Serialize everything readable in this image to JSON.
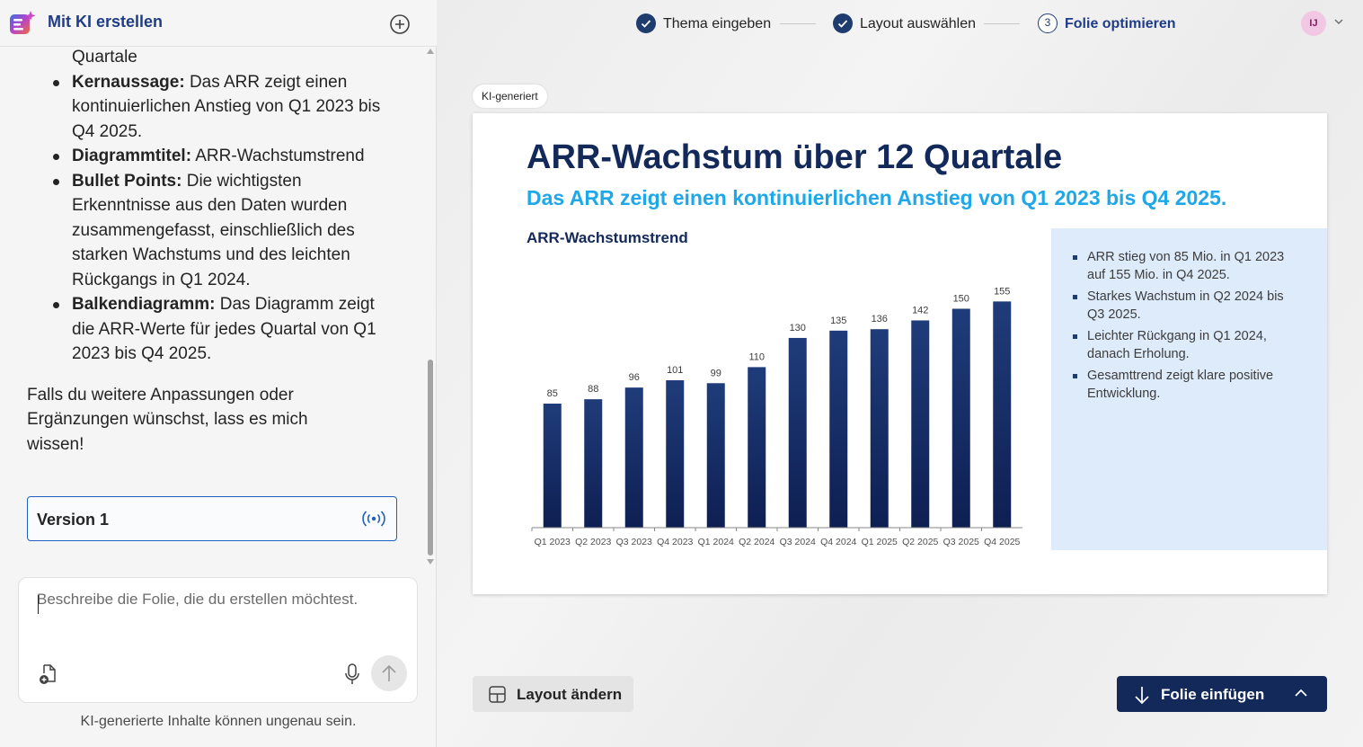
{
  "sidebar": {
    "title": "Mit KI erstellen",
    "chat": {
      "top_fragment": "Quartale",
      "bullets": [
        {
          "label": "Kernaussage:",
          "text": " Das ARR zeigt einen kontinuierlichen Anstieg von Q1 2023 bis Q4 2025."
        },
        {
          "label": "Diagrammtitel:",
          "text": " ARR-Wachstumstrend"
        },
        {
          "label": "Bullet Points:",
          "text": " Die wichtigsten Erkenntnisse aus den Daten wurden zusammengefasst, einschließlich des starken Wachstums und des leichten Rückgangs in Q1 2024."
        },
        {
          "label": "Balkendiagramm:",
          "text": " Das Diagramm zeigt die ARR-Werte für jedes Quartal von Q1 2023 bis Q4 2025."
        }
      ],
      "closing": "Falls du weitere Anpassungen oder Ergänzungen wünschst, lass es mich wissen!"
    },
    "version_label": "Version 1",
    "composer_placeholder": "Beschreibe die Folie, die du erstellen möchtest.",
    "disclaimer": "KI-generierte Inhalte können ungenau sein."
  },
  "stepper": {
    "steps": [
      {
        "label": "Thema eingeben",
        "state": "done"
      },
      {
        "label": "Layout auswählen",
        "state": "done"
      },
      {
        "label": "Folie optimieren",
        "state": "current",
        "number": "3"
      }
    ],
    "avatar_initials": "IJ"
  },
  "slide": {
    "badge": "KI-generiert",
    "title": "ARR-Wachstum über 12 Quartale",
    "subtitle": "Das ARR zeigt einen kontinuierlichen Anstieg von Q1 2023 bis Q4 2025.",
    "chart_title": "ARR-Wachstumstrend",
    "bullets": [
      "ARR stieg von 85 Mio. in Q1 2023 auf 155 Mio. in Q4 2025.",
      "Starkes Wachstum in Q2 2024 bis Q3 2025.",
      "Leichter Rückgang in Q1 2024, danach Erholung.",
      "Gesamttrend zeigt klare positive Entwicklung."
    ]
  },
  "chart_data": {
    "type": "bar",
    "title": "ARR-Wachstumstrend",
    "categories": [
      "Q1 2023",
      "Q2 2023",
      "Q3 2023",
      "Q4 2023",
      "Q1 2024",
      "Q2 2024",
      "Q3 2024",
      "Q4 2024",
      "Q1 2025",
      "Q2 2025",
      "Q3 2025",
      "Q4 2025"
    ],
    "values": [
      85,
      88,
      96,
      101,
      99,
      110,
      130,
      135,
      136,
      142,
      150,
      155
    ],
    "xlabel": "",
    "ylabel": "",
    "ylim": [
      0,
      170
    ],
    "grid": false,
    "data_labels": true,
    "bar_color_top": "#1f3c7a",
    "bar_color_bottom": "#0e1f52"
  },
  "actions": {
    "change_layout": "Layout ändern",
    "insert_slide": "Folie einfügen"
  },
  "colors": {
    "brand_navy": "#13295a",
    "accent_cyan": "#1ea7e9",
    "side_box_bg": "#deebfb",
    "focus_border": "#1f5fbf"
  }
}
